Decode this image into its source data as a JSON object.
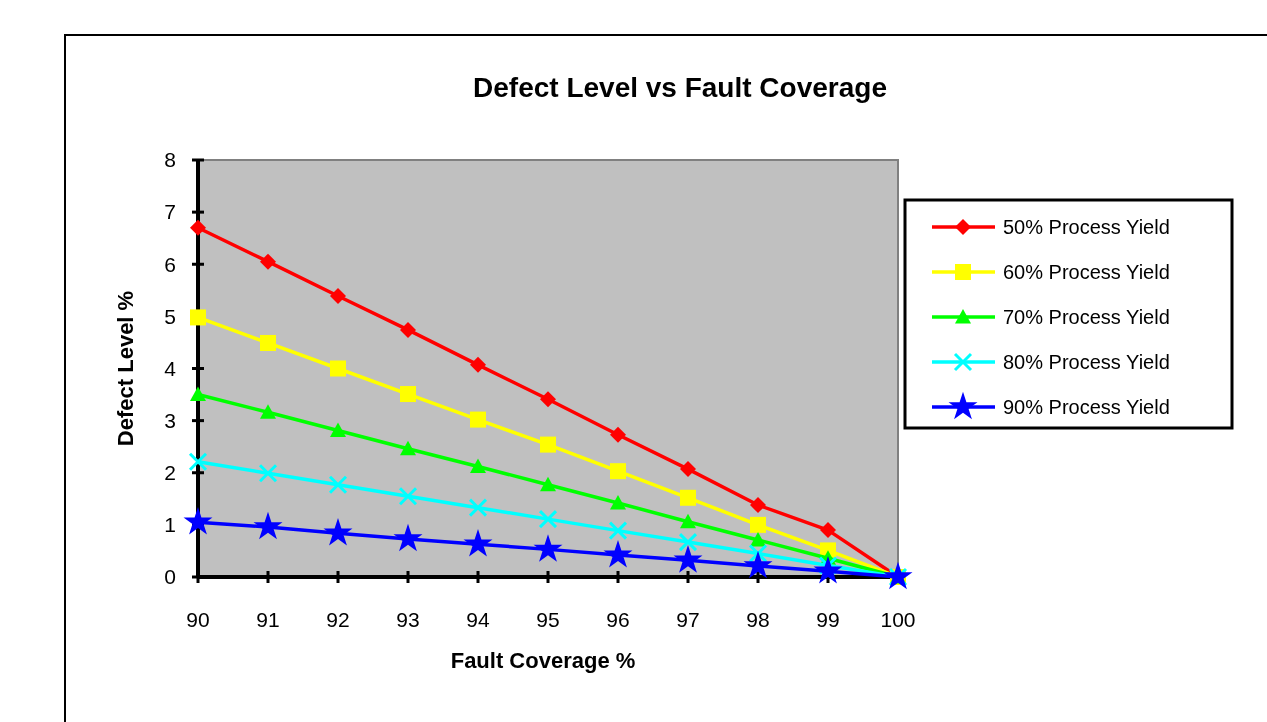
{
  "chart_data": {
    "type": "line",
    "title": "Defect Level vs Fault Coverage",
    "xlabel": "Fault Coverage %",
    "ylabel": "Defect Level %",
    "x": [
      90,
      91,
      92,
      93,
      94,
      95,
      96,
      97,
      98,
      99,
      100
    ],
    "xlim": [
      90,
      100
    ],
    "xticks": [
      90,
      91,
      92,
      93,
      94,
      95,
      96,
      97,
      98,
      99,
      100
    ],
    "ylim": [
      0,
      8
    ],
    "yticks": [
      0,
      1,
      2,
      3,
      4,
      5,
      6,
      7,
      8
    ],
    "grid": false,
    "legend": "right",
    "series": [
      {
        "name": "50% Process Yield",
        "color": "#ff0000",
        "marker": "diamond",
        "values": [
          6.7,
          6.05,
          5.39,
          4.74,
          4.07,
          3.41,
          2.73,
          2.07,
          1.38,
          0.9,
          0
        ]
      },
      {
        "name": "60% Process Yield",
        "color": "#ffff00",
        "marker": "square",
        "values": [
          4.98,
          4.49,
          4.0,
          3.51,
          3.02,
          2.54,
          2.03,
          1.52,
          1.0,
          0.51,
          0
        ]
      },
      {
        "name": "70% Process Yield",
        "color": "#00ff00",
        "marker": "triangle",
        "values": [
          3.5,
          3.16,
          2.81,
          2.46,
          2.12,
          1.77,
          1.42,
          1.06,
          0.71,
          0.36,
          0
        ]
      },
      {
        "name": "80% Process Yield",
        "color": "#00ffff",
        "marker": "cross",
        "values": [
          2.21,
          1.99,
          1.77,
          1.55,
          1.33,
          1.11,
          0.89,
          0.67,
          0.45,
          0.22,
          0
        ]
      },
      {
        "name": "90% Process Yield",
        "color": "#0000ff",
        "marker": "star",
        "values": [
          1.05,
          0.96,
          0.84,
          0.73,
          0.63,
          0.53,
          0.42,
          0.32,
          0.21,
          0.11,
          0
        ]
      }
    ]
  }
}
